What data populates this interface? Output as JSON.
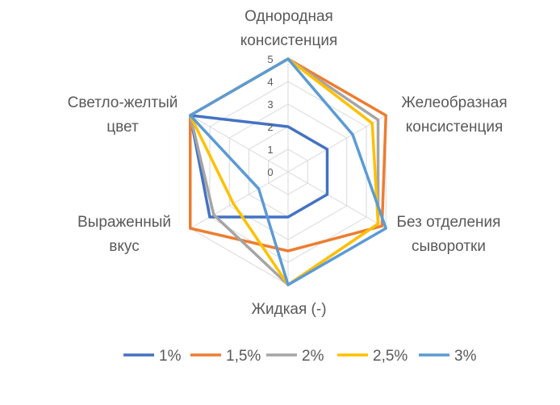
{
  "chart_data": {
    "type": "radar",
    "axes": [
      [
        "Однородная",
        "консистенция"
      ],
      [
        "Желеобразная",
        "консистенция"
      ],
      [
        "Без отделения",
        "сыворотки"
      ],
      [
        "Жидкая (-)"
      ],
      [
        "Выраженный",
        "вкус"
      ],
      [
        "Светло-желтый",
        "цвет"
      ]
    ],
    "rlim": [
      0,
      5
    ],
    "ticks": [
      "0",
      "1",
      "2",
      "3",
      "4",
      "5"
    ],
    "grid": true,
    "legend_position": "bottom",
    "series": [
      {
        "name": "1%",
        "color": "#4472C4",
        "values": [
          2,
          2,
          2,
          2,
          4,
          5
        ]
      },
      {
        "name": "1,5%",
        "color": "#ED7D31",
        "values": [
          5,
          5,
          4.8,
          3.5,
          5,
          5
        ]
      },
      {
        "name": "2%",
        "color": "#A5A5A5",
        "values": [
          5,
          4.6,
          4.6,
          5,
          3.8,
          5
        ]
      },
      {
        "name": "2,5%",
        "color": "#FFC000",
        "values": [
          5,
          4.3,
          4.6,
          5,
          2.8,
          5
        ]
      },
      {
        "name": "3%",
        "color": "#5B9BD5",
        "values": [
          5,
          3.3,
          5,
          5,
          1.5,
          5
        ]
      }
    ]
  }
}
